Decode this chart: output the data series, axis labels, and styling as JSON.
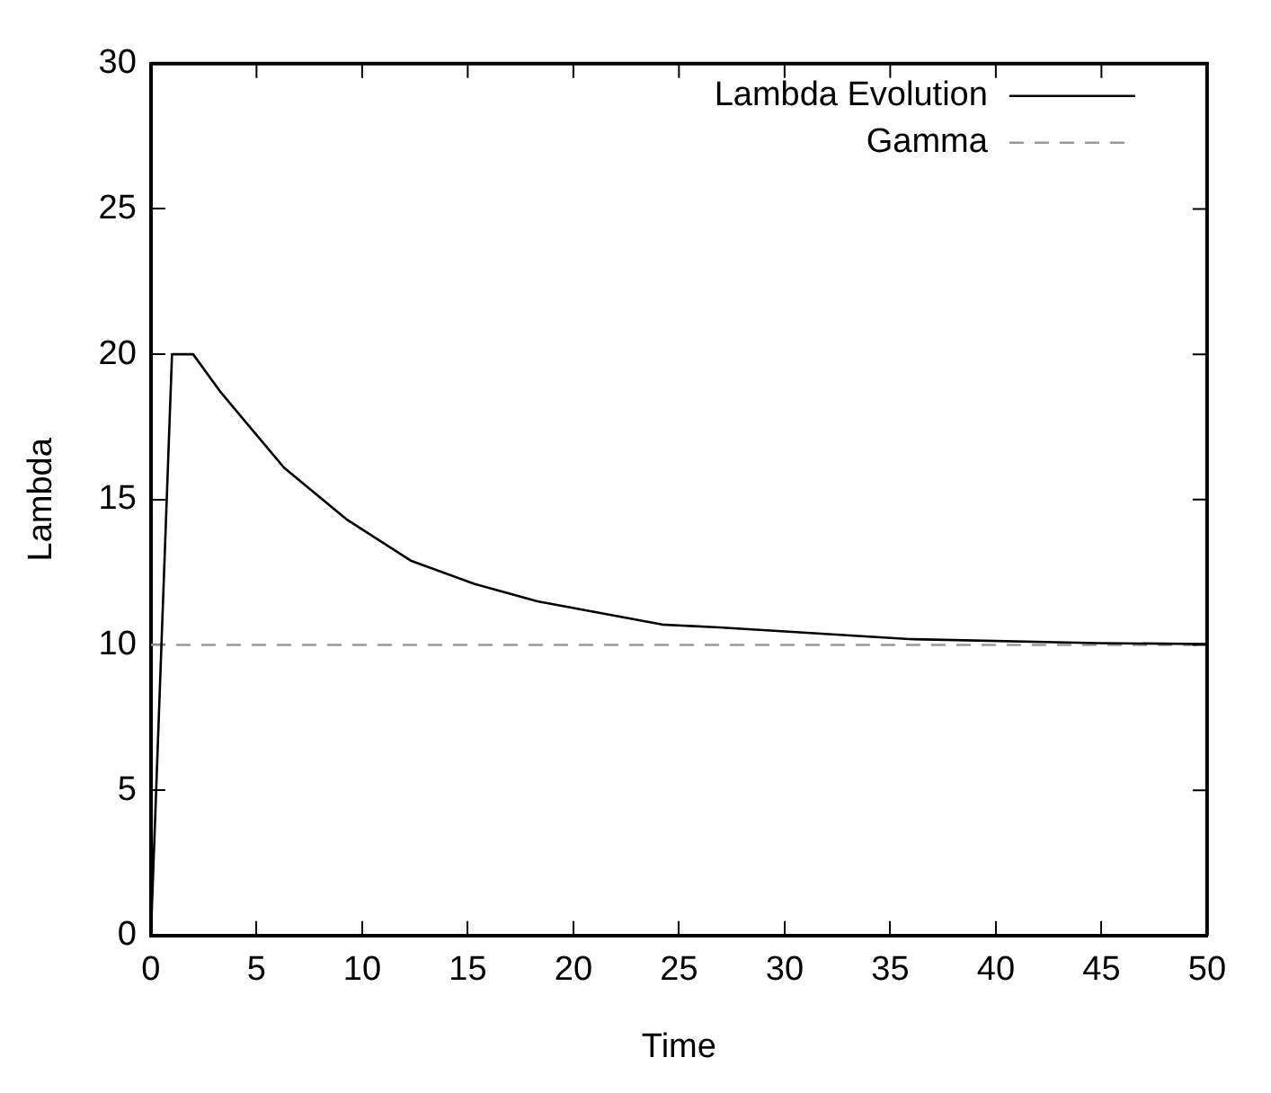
{
  "chart_data": {
    "type": "line",
    "xlabel": "Time",
    "ylabel": "Lambda",
    "xlim": [
      0,
      50
    ],
    "ylim": [
      0,
      30
    ],
    "xticks": [
      0,
      5,
      10,
      15,
      20,
      25,
      30,
      35,
      40,
      45,
      50
    ],
    "yticks": [
      0,
      5,
      10,
      15,
      20,
      25,
      30
    ],
    "grid": false,
    "legend": "top right",
    "marker": "none",
    "series": [
      {
        "name": "Lambda Evolution",
        "color": "#000000",
        "line_style": "solid",
        "x": [
          0,
          1,
          2,
          3.3,
          6.3,
          9.3,
          12.3,
          15.3,
          18.3,
          24.2,
          26.9,
          35.9,
          44.8,
          50
        ],
        "values": [
          0,
          20,
          20,
          18.7,
          16.1,
          14.3,
          12.9,
          12.1,
          11.5,
          10.7,
          10.6,
          10.2,
          10.06,
          10.03
        ]
      },
      {
        "name": "Gamma",
        "color": "#999999",
        "line_style": "dashed",
        "x": [
          0,
          50
        ],
        "values": [
          10,
          10
        ]
      }
    ]
  }
}
